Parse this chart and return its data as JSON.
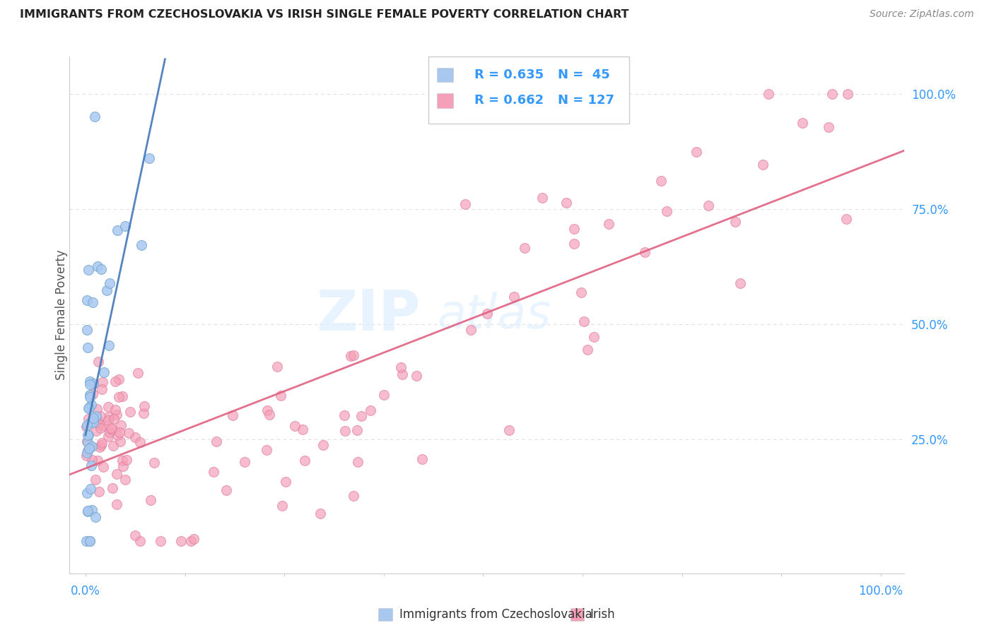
{
  "title": "IMMIGRANTS FROM CZECHOSLOVAKIA VS IRISH SINGLE FEMALE POVERTY CORRELATION CHART",
  "source": "Source: ZipAtlas.com",
  "ylabel": "Single Female Poverty",
  "ylabel_right_ticks": [
    "100.0%",
    "75.0%",
    "50.0%",
    "25.0%"
  ],
  "ylabel_right_vals": [
    1.0,
    0.75,
    0.5,
    0.25
  ],
  "legend_r_czech": "R = 0.635",
  "legend_n_czech": "N =  45",
  "legend_r_irish": "R = 0.662",
  "legend_n_irish": "N = 127",
  "watermark_1": "ZIP",
  "watermark_2": "atlas",
  "blue_color": "#a8c8f0",
  "blue_edge_color": "#7aaad0",
  "blue_line_color": "#4477bb",
  "pink_color": "#f5a0b8",
  "pink_edge_color": "#e080a0",
  "pink_line_color": "#e06080",
  "bg_color": "#ffffff",
  "grid_color": "#e0e0e0",
  "title_color": "#222222",
  "source_color": "#888888",
  "label_color": "#555555",
  "tick_color": "#3399ff",
  "legend_border_color": "#cccccc"
}
